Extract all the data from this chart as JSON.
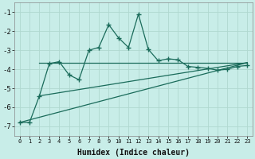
{
  "xlabel": "Humidex (Indice chaleur)",
  "background_color": "#c8ede8",
  "grid_color": "#b0d8d0",
  "line_color": "#1a6b5a",
  "xlim": [
    -0.5,
    23.5
  ],
  "ylim": [
    -7.5,
    -0.5
  ],
  "yticks": [
    -7,
    -6,
    -5,
    -4,
    -3,
    -2,
    -1
  ],
  "xticks": [
    0,
    1,
    2,
    3,
    4,
    5,
    6,
    7,
    8,
    9,
    10,
    11,
    12,
    13,
    14,
    15,
    16,
    17,
    18,
    19,
    20,
    21,
    22,
    23
  ],
  "main_x": [
    0,
    1,
    2,
    3,
    4,
    5,
    6,
    7,
    8,
    9,
    10,
    11,
    12,
    13,
    14,
    15,
    16,
    17,
    18,
    19,
    20,
    21,
    22,
    23
  ],
  "main_y": [
    -6.8,
    -6.8,
    -5.4,
    -3.7,
    -3.6,
    -4.3,
    -4.55,
    -3.0,
    -2.85,
    -1.65,
    -2.35,
    -2.85,
    -1.1,
    -2.95,
    -3.55,
    -3.45,
    -3.5,
    -3.85,
    -3.9,
    -3.95,
    -4.05,
    -4.0,
    -3.85,
    -3.8
  ],
  "line1_x": [
    2,
    23
  ],
  "line1_y": [
    -3.65,
    -3.65
  ],
  "line2_x": [
    0,
    23
  ],
  "line2_y": [
    -6.8,
    -3.65
  ],
  "line3_x": [
    2,
    23
  ],
  "line3_y": [
    -5.4,
    -3.65
  ]
}
